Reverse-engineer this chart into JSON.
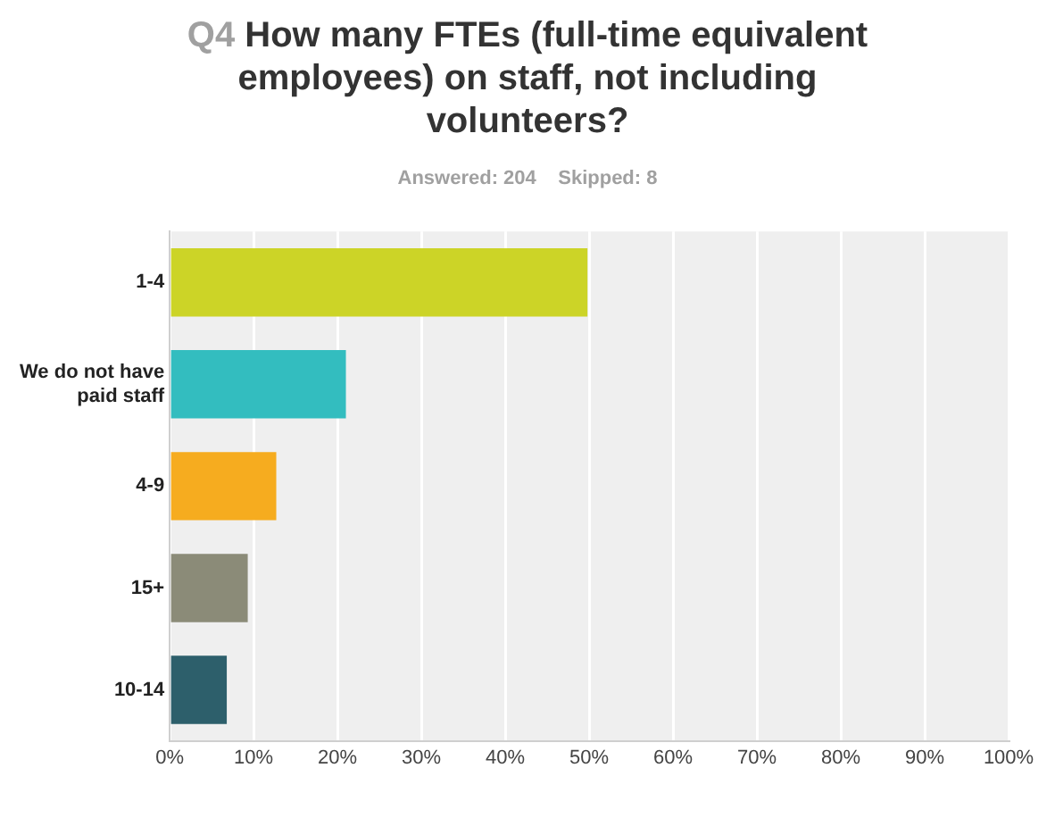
{
  "chart_data": {
    "type": "bar",
    "orientation": "horizontal",
    "title": "Q4 How many FTEs (full-time equivalent employees) on staff, not including volunteers?",
    "subtitle": "Answered: 204    Skipped: 8",
    "categories": [
      "1-4",
      "We do not have paid staff",
      "4-9",
      "15+",
      "10-14"
    ],
    "values": [
      49.8,
      21,
      12.7,
      9.3,
      6.8
    ],
    "colors": [
      "#ccd427",
      "#33bdbf",
      "#f6ac1f",
      "#8b8b78",
      "#2d5f6b"
    ],
    "xlim": [
      0,
      100
    ],
    "xticks": [
      {
        "value": 0,
        "label": "0%"
      },
      {
        "value": 10,
        "label": "10%"
      },
      {
        "value": 20,
        "label": "20%"
      },
      {
        "value": 30,
        "label": "30%"
      },
      {
        "value": 40,
        "label": "40%"
      },
      {
        "value": 50,
        "label": "50%"
      },
      {
        "value": 60,
        "label": "60%"
      },
      {
        "value": 70,
        "label": "70%"
      },
      {
        "value": 80,
        "label": "80%"
      },
      {
        "value": 90,
        "label": "90%"
      },
      {
        "value": 100,
        "label": "100%"
      }
    ],
    "grid": "x",
    "legend": false
  }
}
